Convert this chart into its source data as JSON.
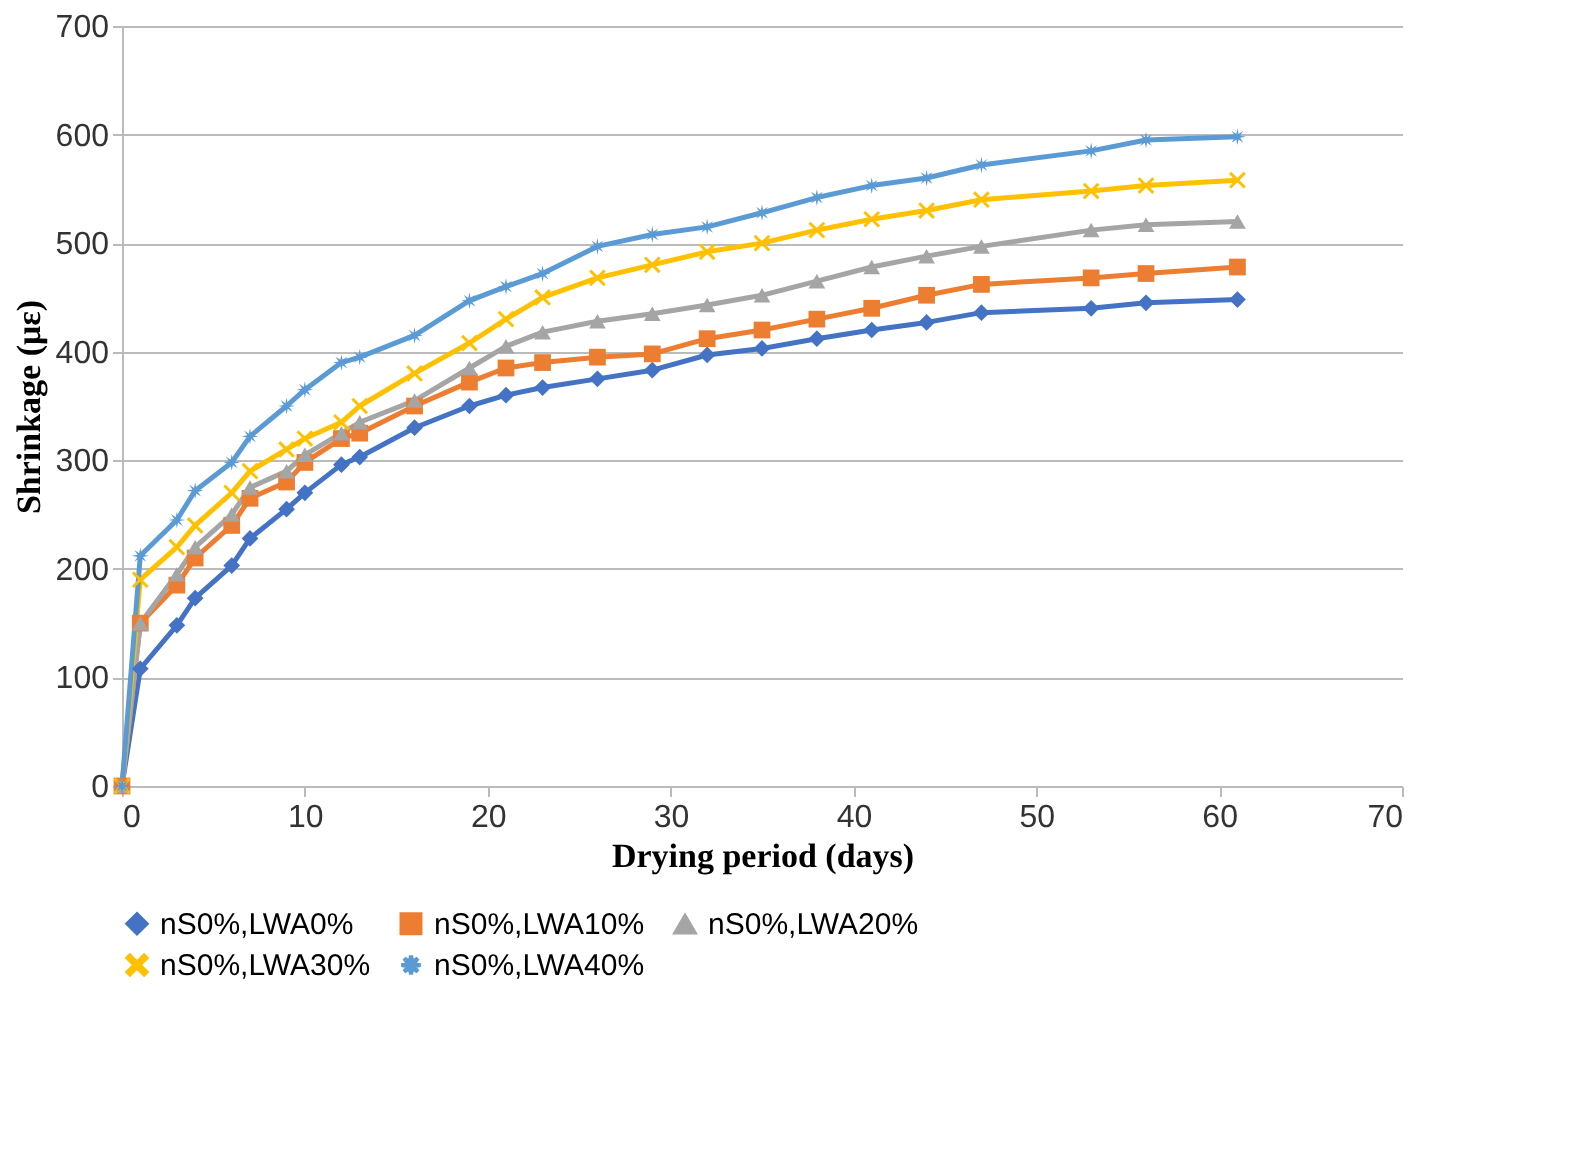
{
  "chart_data": {
    "type": "line",
    "xlabel": "Drying period (days)",
    "ylabel": "Shrinkage (με)",
    "x": [
      0,
      1,
      3,
      4,
      6,
      7,
      9,
      10,
      12,
      13,
      16,
      19,
      21,
      23,
      26,
      29,
      32,
      35,
      38,
      41,
      44,
      47,
      53,
      56,
      61
    ],
    "series": [
      {
        "name": "nS0%,LWA0%",
        "color": "#4472c4",
        "marker": "diamond",
        "values": [
          0,
          108,
          148,
          173,
          203,
          228,
          255,
          270,
          296,
          303,
          330,
          350,
          360,
          367,
          375,
          383,
          397,
          403,
          412,
          420,
          427,
          436,
          440,
          445,
          448
        ]
      },
      {
        "name": "nS0%,LWA10%",
        "color": "#ed7d31",
        "marker": "square",
        "values": [
          0,
          150,
          185,
          210,
          240,
          265,
          280,
          298,
          320,
          325,
          350,
          372,
          385,
          390,
          395,
          398,
          412,
          420,
          430,
          440,
          452,
          462,
          468,
          472,
          478
        ]
      },
      {
        "name": "nS0%,LWA20%",
        "color": "#a5a5a5",
        "marker": "triangle",
        "values": [
          0,
          150,
          195,
          220,
          250,
          275,
          290,
          305,
          325,
          335,
          355,
          385,
          405,
          418,
          428,
          435,
          443,
          452,
          465,
          478,
          488,
          497,
          512,
          517,
          520
        ]
      },
      {
        "name": "nS0%,LWA30%",
        "color": "#ffc000",
        "marker": "cross",
        "values": [
          0,
          190,
          220,
          240,
          270,
          290,
          310,
          320,
          335,
          350,
          380,
          408,
          430,
          450,
          468,
          480,
          492,
          500,
          512,
          522,
          530,
          540,
          548,
          553,
          558
        ]
      },
      {
        "name": "nS0%,LWA40%",
        "color": "#5b9bd5",
        "marker": "star",
        "values": [
          0,
          212,
          245,
          272,
          298,
          322,
          350,
          365,
          390,
          395,
          415,
          447,
          460,
          472,
          497,
          508,
          515,
          528,
          542,
          553,
          560,
          572,
          585,
          595,
          598
        ]
      }
    ],
    "xlim": [
      0,
      70
    ],
    "xticks": [
      0,
      10,
      20,
      30,
      40,
      50,
      60,
      70
    ],
    "ylim": [
      0,
      700
    ],
    "yticks": [
      0,
      100,
      200,
      300,
      400,
      500,
      600,
      700
    ],
    "grid": "y",
    "legend": "bottom",
    "line_style": "solid"
  }
}
